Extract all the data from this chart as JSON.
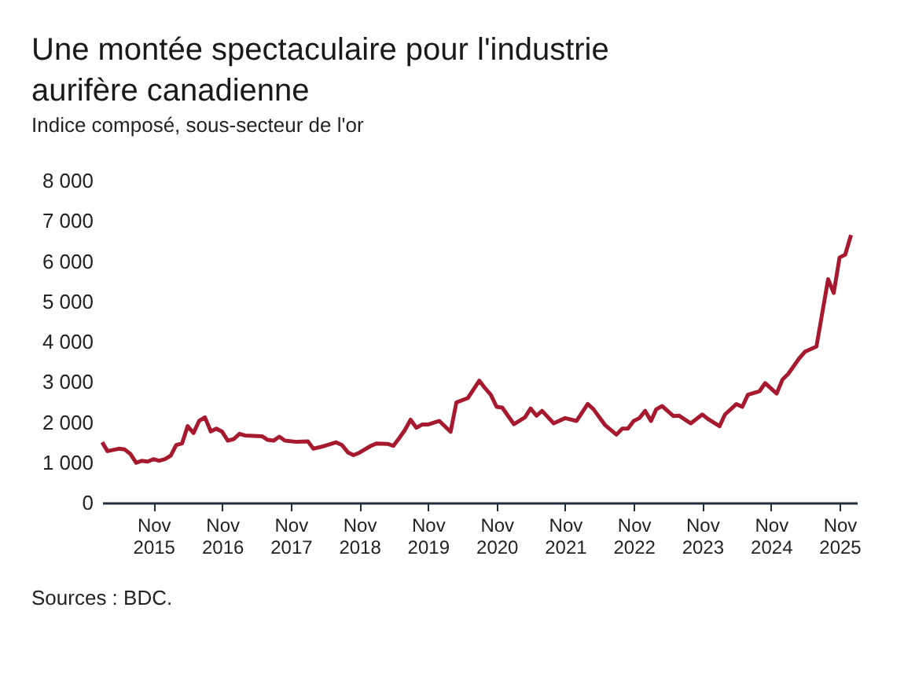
{
  "chart_data": {
    "type": "line",
    "title": "Une montée spectaculaire pour l'industrie aurifère canadienne",
    "subtitle": "Indice composé, sous-secteur de l'or",
    "annotations": [
      "Sources : BDC."
    ],
    "x": [
      "2015-02",
      "2015-03",
      "2015-05",
      "2015-06",
      "2015-07",
      "2015-08",
      "2015-09",
      "2015-10",
      "2015-11",
      "2015-12",
      "2016-01",
      "2016-02",
      "2016-03",
      "2016-04",
      "2016-05",
      "2016-06",
      "2016-07",
      "2016-08",
      "2016-09",
      "2016-10",
      "2016-11",
      "2016-12",
      "2017-01",
      "2017-02",
      "2017-03",
      "2017-06",
      "2017-07",
      "2017-08",
      "2017-09",
      "2017-10",
      "2017-12",
      "2018-02",
      "2018-03",
      "2018-05",
      "2018-07",
      "2018-08",
      "2018-09",
      "2018-10",
      "2018-11",
      "2019-01",
      "2019-02",
      "2019-04",
      "2019-05",
      "2019-06",
      "2019-07",
      "2019-08",
      "2019-09",
      "2019-10",
      "2019-11",
      "2020-01",
      "2020-03",
      "2020-04",
      "2020-06",
      "2020-08",
      "2020-09",
      "2020-10",
      "2020-11",
      "2020-12",
      "2021-02",
      "2021-04",
      "2021-05",
      "2021-06",
      "2021-07",
      "2021-09",
      "2021-11",
      "2022-01",
      "2022-03",
      "2022-04",
      "2022-06",
      "2022-08",
      "2022-09",
      "2022-10",
      "2022-11",
      "2022-12",
      "2023-01",
      "2023-02",
      "2023-03",
      "2023-04",
      "2023-06",
      "2023-07",
      "2023-09",
      "2023-11",
      "2023-12",
      "2024-02",
      "2024-03",
      "2024-05",
      "2024-06",
      "2024-07",
      "2024-09",
      "2024-10",
      "2024-12",
      "2025-01",
      "2025-02",
      "2025-04",
      "2025-05",
      "2025-07",
      "2025-09",
      "2025-10",
      "2025-11",
      "2025-12",
      "2026-01"
    ],
    "series": [
      {
        "color": "#a6192e",
        "values": [
          1500,
          1280,
          1340,
          1320,
          1210,
          990,
          1040,
          1020,
          1080,
          1040,
          1080,
          1170,
          1430,
          1470,
          1900,
          1730,
          2030,
          2120,
          1770,
          1840,
          1760,
          1540,
          1580,
          1710,
          1670,
          1650,
          1560,
          1540,
          1640,
          1540,
          1510,
          1520,
          1340,
          1410,
          1500,
          1430,
          1250,
          1180,
          1240,
          1410,
          1470,
          1460,
          1410,
          1600,
          1800,
          2060,
          1860,
          1940,
          1940,
          2030,
          1760,
          2490,
          2600,
          3030,
          2840,
          2680,
          2380,
          2360,
          1950,
          2120,
          2340,
          2160,
          2280,
          1970,
          2100,
          2030,
          2450,
          2320,
          1930,
          1690,
          1840,
          1840,
          2030,
          2100,
          2280,
          2030,
          2320,
          2400,
          2150,
          2160,
          1970,
          2190,
          2080,
          1900,
          2190,
          2450,
          2380,
          2680,
          2770,
          2970,
          2710,
          3060,
          3200,
          3590,
          3750,
          3880,
          5550,
          5210,
          6090,
          6160,
          6650
        ]
      }
    ],
    "xlim": [
      "2015-02",
      "2026-02"
    ],
    "xticks": [
      {
        "value": "2015-11",
        "label": "Nov 2015"
      },
      {
        "value": "2016-11",
        "label": "Nov 2016"
      },
      {
        "value": "2017-11",
        "label": "Nov 2017"
      },
      {
        "value": "2018-11",
        "label": "Nov 2018"
      },
      {
        "value": "2019-11",
        "label": "Nov 2019"
      },
      {
        "value": "2020-11",
        "label": "Nov 2020"
      },
      {
        "value": "2021-11",
        "label": "Nov 2021"
      },
      {
        "value": "2022-11",
        "label": "Nov 2022"
      },
      {
        "value": "2023-11",
        "label": "Nov 2023"
      },
      {
        "value": "2024-11",
        "label": "Nov 2024"
      },
      {
        "value": "2025-11",
        "label": "Nov 2025"
      }
    ],
    "ylim": [
      0,
      8000
    ],
    "yticks": [
      0,
      {
        "value": 1000,
        "label": "1 000"
      },
      {
        "value": 2000,
        "label": "2 000"
      },
      {
        "value": 3000,
        "label": "3 000"
      },
      {
        "value": 4000,
        "label": "4 000"
      },
      {
        "value": 5000,
        "label": "5 000"
      },
      {
        "value": 6000,
        "label": "6 000"
      },
      {
        "value": 7000,
        "label": "7 000"
      },
      {
        "value": 8000,
        "label": "8 000"
      }
    ],
    "grid": false,
    "marker": "none",
    "line_style": "solid"
  }
}
